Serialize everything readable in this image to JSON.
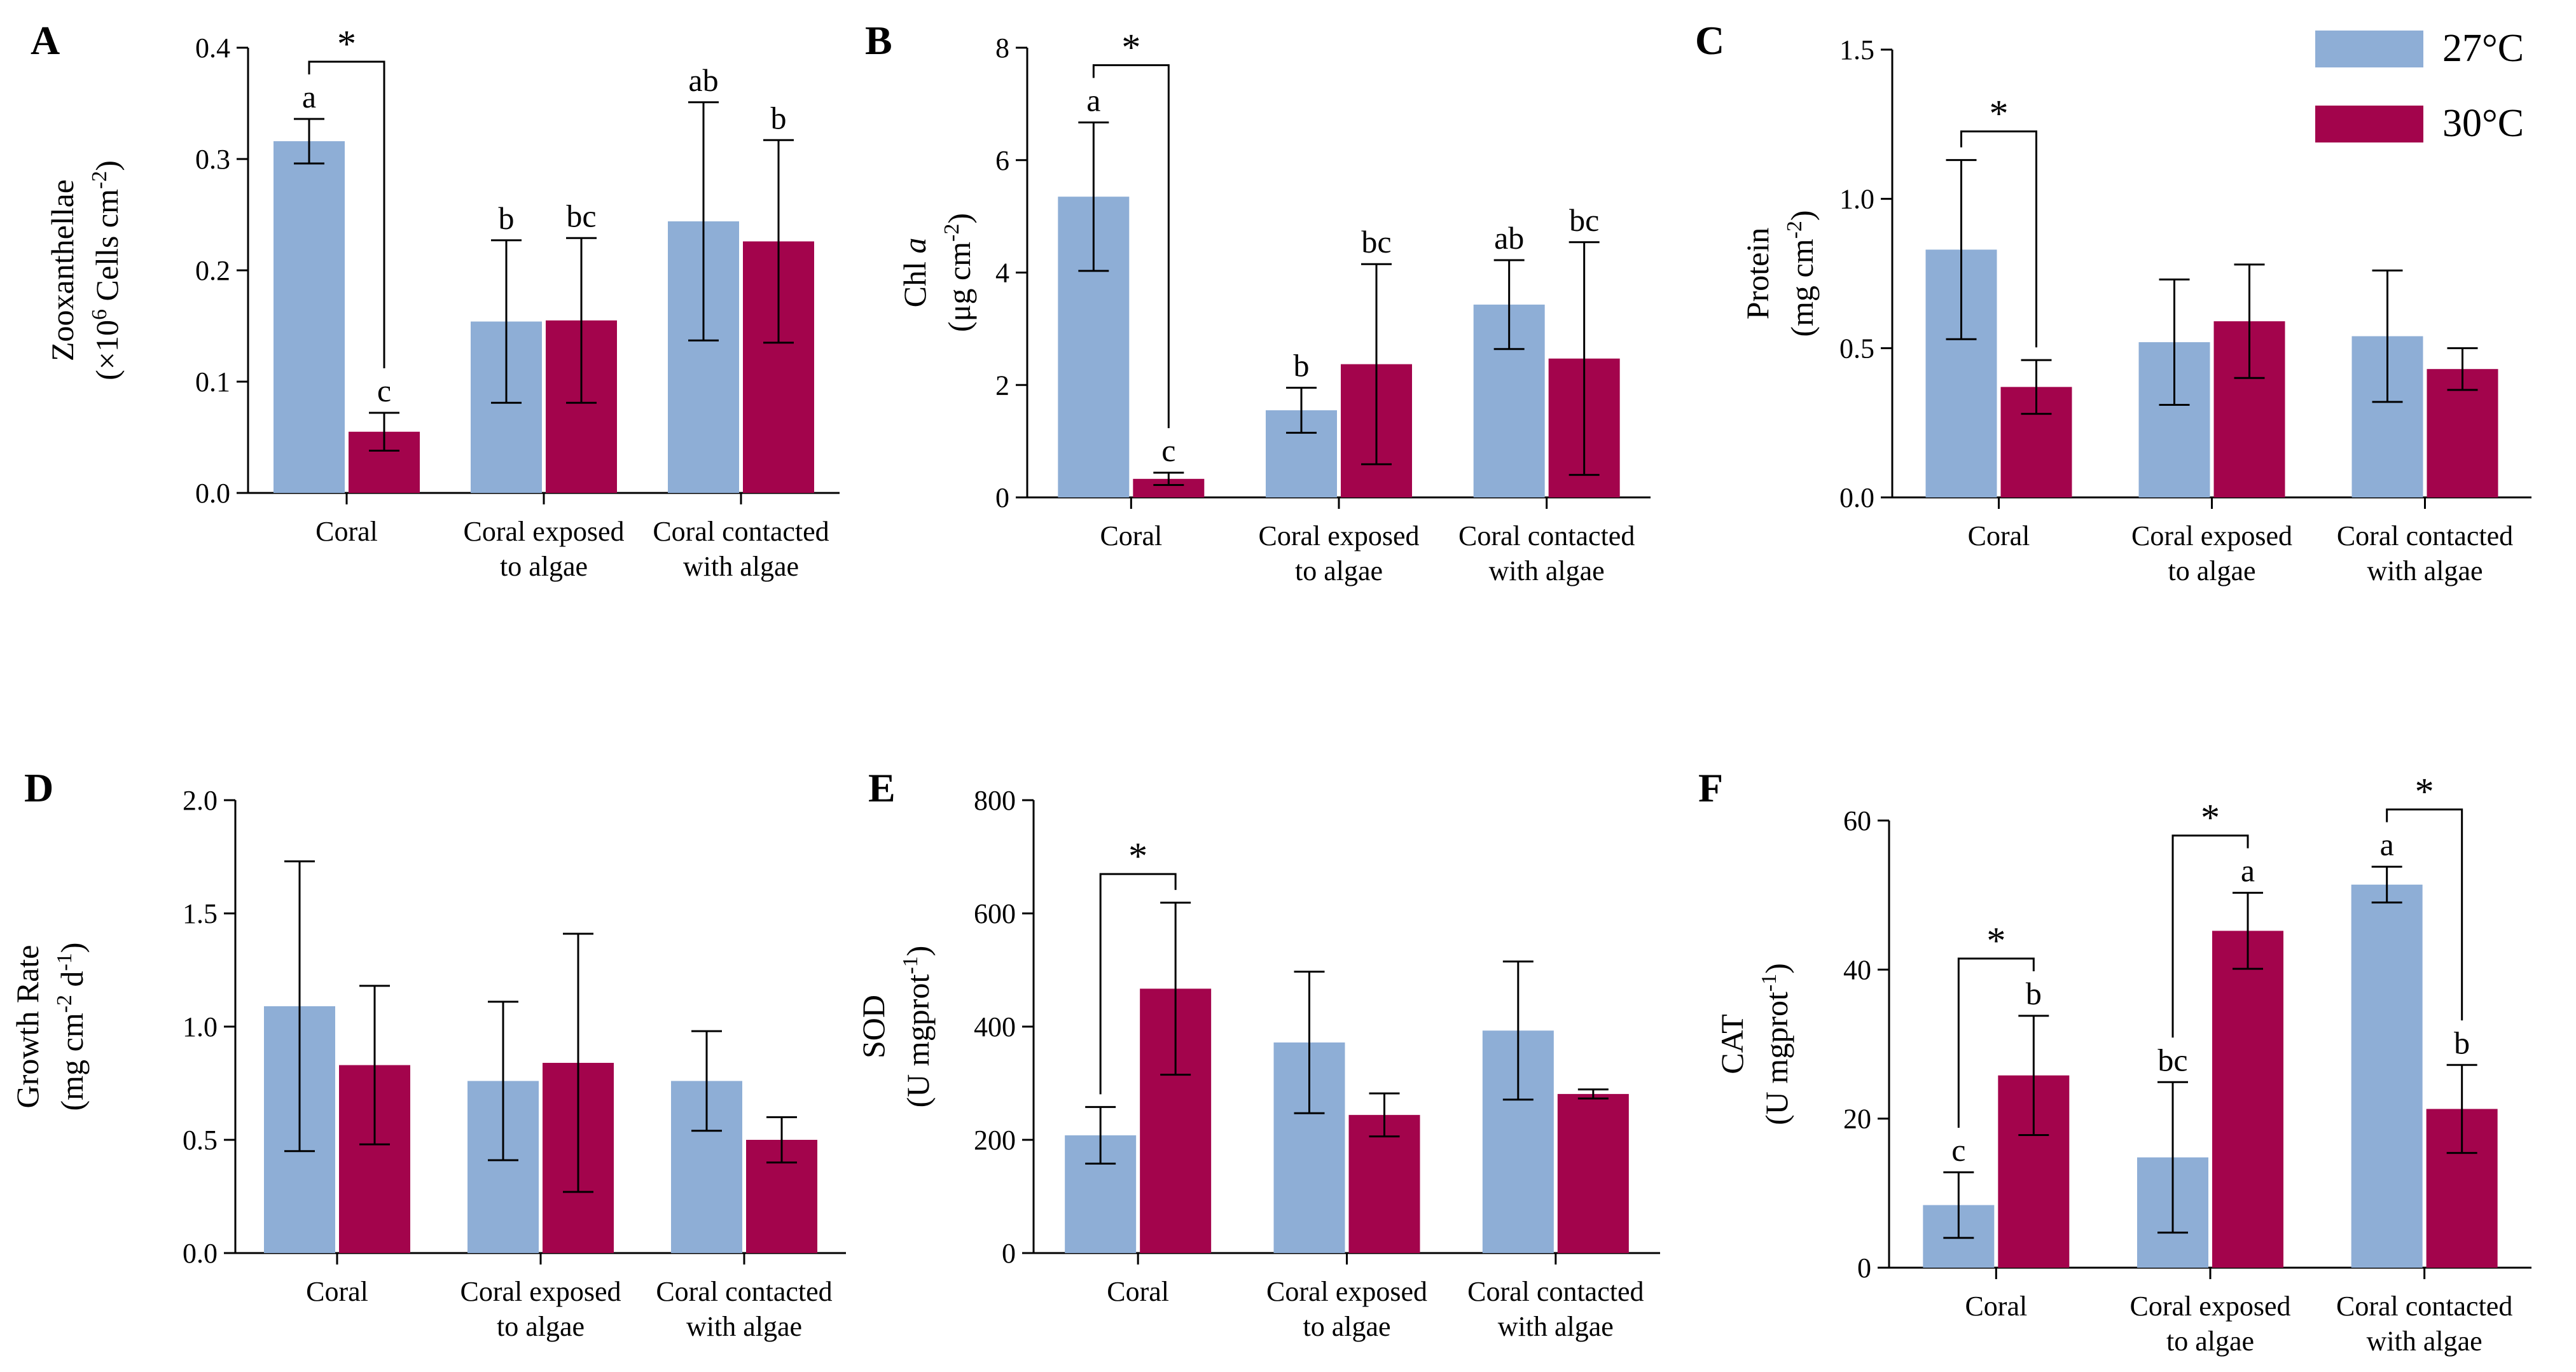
{
  "colors": {
    "t27": "#8eaed6",
    "t30": "#a3044c",
    "axis": "#000000"
  },
  "legend": [
    {
      "name": "27°C",
      "color_key": "t27"
    },
    {
      "name": "30°C",
      "color_key": "t30"
    }
  ],
  "chart_data": [
    {
      "panel": "A",
      "type": "bar",
      "ylabel_lines": [
        "Zooxanthellae",
        "(×10^6 Cells cm^-2)"
      ],
      "ylim": [
        0,
        0.4
      ],
      "yticks": [
        "0.0",
        "0.1",
        "0.2",
        "0.3",
        "0.4"
      ],
      "categories": [
        [
          "Coral"
        ],
        [
          "Coral exposed",
          "to algae"
        ],
        [
          "Coral contacted",
          "with algae"
        ]
      ],
      "series": [
        {
          "name": "27°C",
          "values": [
            0.316,
            0.154,
            0.244
          ],
          "errors": [
            0.02,
            0.073,
            0.107
          ],
          "letters": [
            "a",
            "b",
            "ab"
          ]
        },
        {
          "name": "30°C",
          "values": [
            0.055,
            0.155,
            0.226
          ],
          "errors": [
            0.017,
            0.074,
            0.091
          ],
          "letters": [
            "c",
            "bc",
            "b"
          ]
        }
      ],
      "significance": [
        {
          "category": 0,
          "label": "*"
        }
      ]
    },
    {
      "panel": "B",
      "type": "bar",
      "ylabel_lines": [
        "Chl a",
        "(μg cm^-2)"
      ],
      "ylim": [
        0,
        8
      ],
      "yticks": [
        "0",
        "2",
        "4",
        "6",
        "8"
      ],
      "categories": [
        [
          "Coral"
        ],
        [
          "Coral exposed",
          "to algae"
        ],
        [
          "Coral contacted",
          "with algae"
        ]
      ],
      "series": [
        {
          "name": "27°C",
          "values": [
            5.35,
            1.55,
            3.43
          ],
          "errors": [
            1.32,
            0.4,
            0.79
          ],
          "letters": [
            "a",
            "b",
            "ab"
          ]
        },
        {
          "name": "30°C",
          "values": [
            0.33,
            2.37,
            2.47
          ],
          "errors": [
            0.11,
            1.78,
            2.07
          ],
          "letters": [
            "c",
            "bc",
            "bc"
          ]
        }
      ],
      "significance": [
        {
          "category": 0,
          "label": "*"
        }
      ]
    },
    {
      "panel": "C",
      "type": "bar",
      "ylabel_lines": [
        "Protein",
        "(mg cm^-2)"
      ],
      "ylim": [
        0,
        1.5
      ],
      "yticks": [
        "0.0",
        "0.5",
        "1.0",
        "1.5"
      ],
      "categories": [
        [
          "Coral"
        ],
        [
          "Coral exposed",
          "to algae"
        ],
        [
          "Coral contacted",
          "with algae"
        ]
      ],
      "series": [
        {
          "name": "27°C",
          "values": [
            0.83,
            0.52,
            0.54
          ],
          "errors": [
            0.3,
            0.21,
            0.22
          ],
          "letters": [
            "",
            "",
            ""
          ]
        },
        {
          "name": "30°C",
          "values": [
            0.37,
            0.59,
            0.43
          ],
          "errors": [
            0.09,
            0.19,
            0.07
          ],
          "letters": [
            "",
            "",
            ""
          ]
        }
      ],
      "significance": [
        {
          "category": 0,
          "label": "*"
        }
      ]
    },
    {
      "panel": "D",
      "type": "bar",
      "ylabel_lines": [
        "Growth Rate",
        "(mg cm^-2 d^-1)"
      ],
      "ylim": [
        0,
        2.0
      ],
      "yticks": [
        "0.0",
        "0.5",
        "1.0",
        "1.5",
        "2.0"
      ],
      "categories": [
        [
          "Coral"
        ],
        [
          "Coral exposed",
          "to algae"
        ],
        [
          "Coral contacted",
          "with algae"
        ]
      ],
      "series": [
        {
          "name": "27°C",
          "values": [
            1.09,
            0.76,
            0.76
          ],
          "errors": [
            0.64,
            0.35,
            0.22
          ],
          "letters": [
            "",
            "",
            ""
          ]
        },
        {
          "name": "30°C",
          "values": [
            0.83,
            0.84,
            0.5
          ],
          "errors": [
            0.35,
            0.57,
            0.1
          ],
          "letters": [
            "",
            "",
            ""
          ]
        }
      ],
      "significance": []
    },
    {
      "panel": "E",
      "type": "bar",
      "ylabel_lines": [
        "SOD",
        "(U mgprot^-1)"
      ],
      "ylim": [
        0,
        800
      ],
      "yticks": [
        "0",
        "200",
        "400",
        "600",
        "800"
      ],
      "categories": [
        [
          "Coral"
        ],
        [
          "Coral exposed",
          "to algae"
        ],
        [
          "Coral contacted",
          "with algae"
        ]
      ],
      "series": [
        {
          "name": "27°C",
          "values": [
            208,
            372,
            393
          ],
          "errors": [
            50,
            125,
            122
          ],
          "letters": [
            "",
            "",
            ""
          ]
        },
        {
          "name": "30°C",
          "values": [
            467,
            244,
            281
          ],
          "errors": [
            152,
            38,
            8
          ],
          "letters": [
            "",
            "",
            ""
          ]
        }
      ],
      "significance": [
        {
          "category": 0,
          "label": "*"
        }
      ]
    },
    {
      "panel": "F",
      "type": "bar",
      "ylabel_lines": [
        "CAT",
        "(U mgprot^-1)"
      ],
      "ylim": [
        0,
        60
      ],
      "yticks": [
        "0",
        "20",
        "40",
        "60"
      ],
      "categories": [
        [
          "Coral"
        ],
        [
          "Coral exposed",
          "to algae"
        ],
        [
          "Coral contacted",
          "with algae"
        ]
      ],
      "series": [
        {
          "name": "27°C",
          "values": [
            8.4,
            14.8,
            51.4
          ],
          "errors": [
            4.4,
            10.1,
            2.4
          ],
          "letters": [
            "c",
            "bc",
            "a"
          ]
        },
        {
          "name": "30°C",
          "values": [
            25.8,
            45.2,
            21.3
          ],
          "errors": [
            8.0,
            5.1,
            5.9
          ],
          "letters": [
            "b",
            "a",
            "b"
          ]
        }
      ],
      "significance": [
        {
          "category": 0,
          "label": "*"
        },
        {
          "category": 1,
          "label": "*"
        },
        {
          "category": 2,
          "label": "*"
        }
      ]
    }
  ]
}
